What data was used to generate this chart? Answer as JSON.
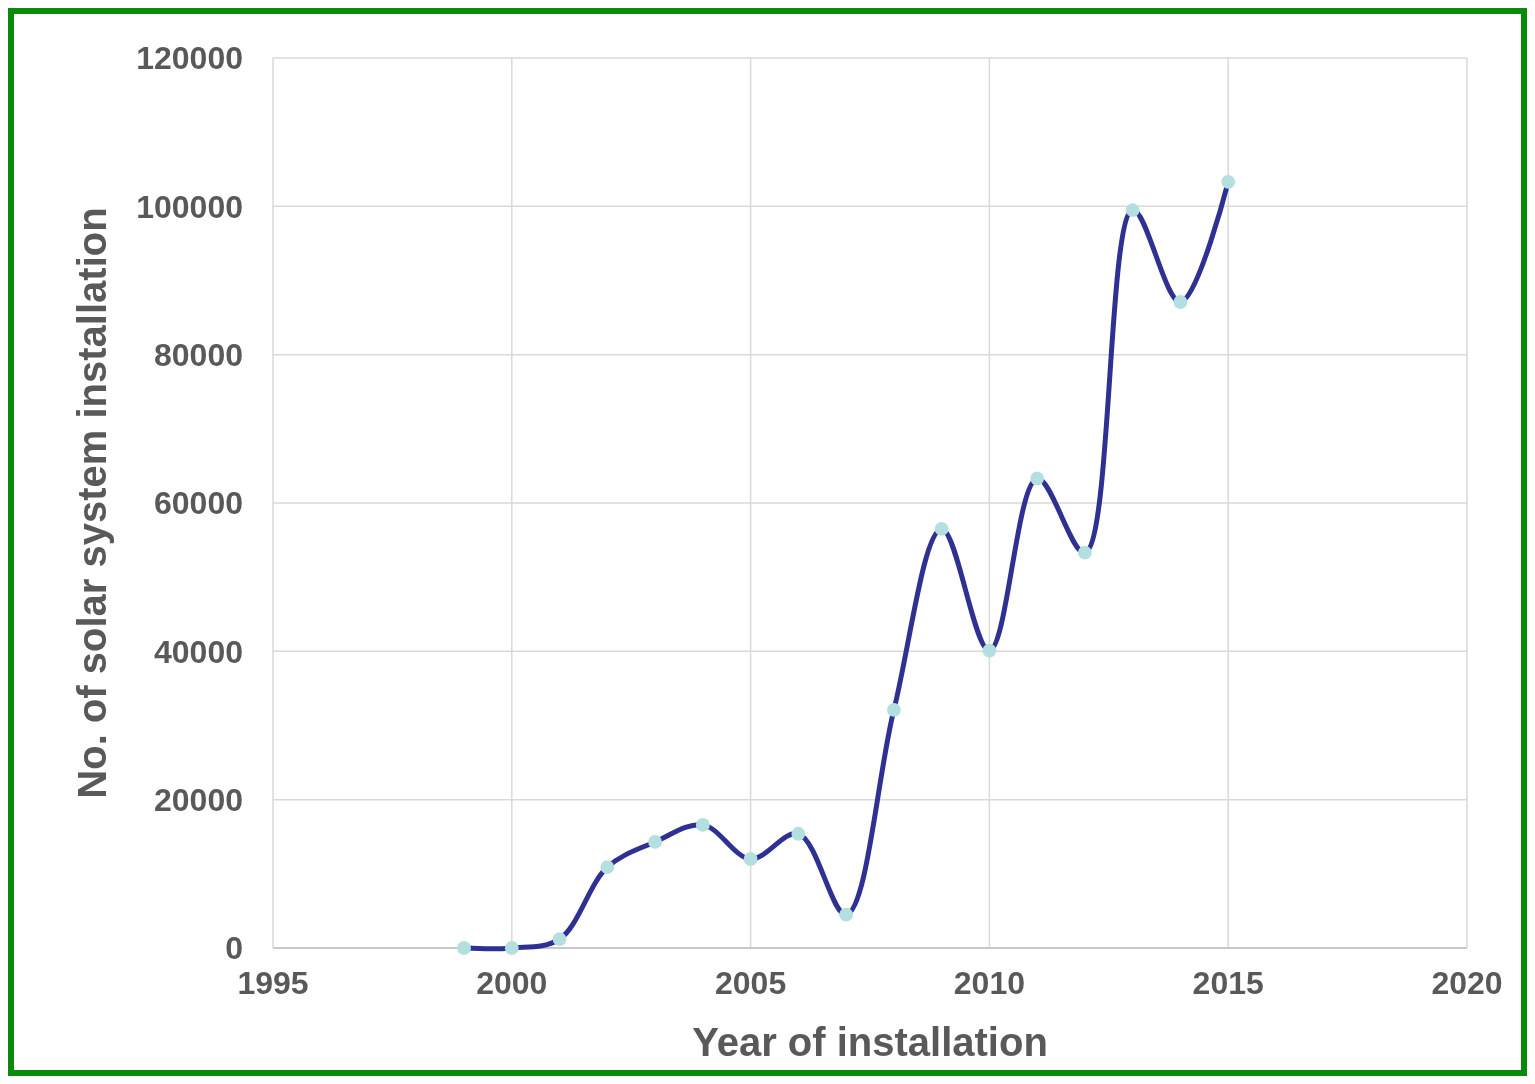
{
  "chart_data": {
    "type": "line",
    "xlabel": "Year of installation",
    "ylabel": "No. of solar system installation",
    "x": [
      1999,
      2000,
      2001,
      2002,
      2003,
      2004,
      2005,
      2006,
      2007,
      2008,
      2009,
      2010,
      2011,
      2012,
      2013,
      2014,
      2015
    ],
    "series": [
      {
        "color": "#2e3192",
        "colors": [
          "#b4dfe0",
          "#b4dfe0",
          "#b4dfe0",
          "#b4dfe0",
          "#b4dfe0",
          "#b4dfe0",
          "#b4dfe0",
          "#b4dfe0",
          "#b4dfe0",
          "#b4dfe0",
          "#b4dfe0",
          "#b4dfe0",
          "#b4dfe0",
          "#b4dfe0",
          "#b4dfe0",
          "#b4dfe0",
          "#b4dfe0"
        ],
        "values": [
          0,
          0,
          1200,
          10900,
          14300,
          16600,
          12000,
          15400,
          4500,
          32100,
          56500,
          40100,
          63300,
          53300,
          99500,
          87100,
          103300
        ]
      }
    ],
    "xlim": [
      1995,
      2020
    ],
    "xticks": [
      1995,
      2000,
      2005,
      2010,
      2015,
      2020
    ],
    "ylim": [
      0,
      120000
    ],
    "yticks": [
      0,
      20000,
      40000,
      60000,
      80000,
      100000,
      120000
    ],
    "grid": true,
    "marker": "circle",
    "line_style": "solid"
  }
}
